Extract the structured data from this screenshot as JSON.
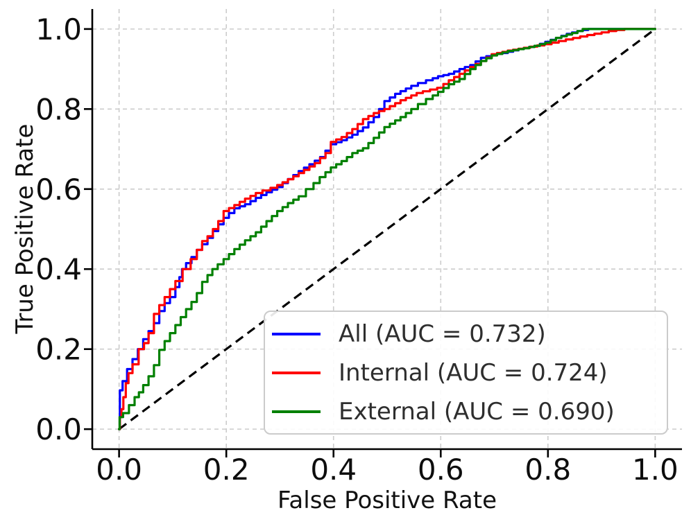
{
  "chart_data": {
    "type": "line",
    "subtype": "roc-curve",
    "title": "",
    "xlabel": "False Positive Rate",
    "ylabel": "True Positive Rate",
    "xlim": [
      -0.05,
      1.05
    ],
    "ylim": [
      -0.05,
      1.05
    ],
    "xticks": [
      "0.0",
      "0.2",
      "0.4",
      "0.6",
      "0.8",
      "1.0"
    ],
    "yticks": [
      "0.0",
      "0.2",
      "0.4",
      "0.6",
      "0.8",
      "1.0"
    ],
    "grid": {
      "on": true,
      "style": "dashed",
      "color": "#cccccc"
    },
    "legend_position": "lower right",
    "reference_line": {
      "name": "chance-diagonal",
      "style": "dashed",
      "color": "#000000",
      "from": [
        0,
        0
      ],
      "to": [
        1,
        1
      ]
    },
    "series": [
      {
        "name": "All",
        "auc": 0.732,
        "legend_label": "All (AUC = 0.732)",
        "color": "#0000ff",
        "points": [
          [
            0,
            0
          ],
          [
            0.003,
            0.097
          ],
          [
            0.01,
            0.12
          ],
          [
            0.02,
            0.15
          ],
          [
            0.03,
            0.175
          ],
          [
            0.04,
            0.2
          ],
          [
            0.05,
            0.225
          ],
          [
            0.06,
            0.245
          ],
          [
            0.07,
            0.265
          ],
          [
            0.08,
            0.295
          ],
          [
            0.09,
            0.315
          ],
          [
            0.1,
            0.33
          ],
          [
            0.11,
            0.355
          ],
          [
            0.115,
            0.38
          ],
          [
            0.12,
            0.4
          ],
          [
            0.13,
            0.415
          ],
          [
            0.14,
            0.43
          ],
          [
            0.15,
            0.448
          ],
          [
            0.16,
            0.462
          ],
          [
            0.17,
            0.478
          ],
          [
            0.18,
            0.495
          ],
          [
            0.19,
            0.512
          ],
          [
            0.2,
            0.528
          ],
          [
            0.21,
            0.54
          ],
          [
            0.22,
            0.552
          ],
          [
            0.24,
            0.562
          ],
          [
            0.26,
            0.578
          ],
          [
            0.28,
            0.592
          ],
          [
            0.3,
            0.605
          ],
          [
            0.32,
            0.625
          ],
          [
            0.34,
            0.645
          ],
          [
            0.36,
            0.662
          ],
          [
            0.38,
            0.68
          ],
          [
            0.4,
            0.712
          ],
          [
            0.42,
            0.722
          ],
          [
            0.44,
            0.736
          ],
          [
            0.46,
            0.754
          ],
          [
            0.48,
            0.78
          ],
          [
            0.5,
            0.82
          ],
          [
            0.52,
            0.838
          ],
          [
            0.55,
            0.858
          ],
          [
            0.58,
            0.872
          ],
          [
            0.6,
            0.882
          ],
          [
            0.62,
            0.888
          ],
          [
            0.64,
            0.9
          ],
          [
            0.66,
            0.91
          ],
          [
            0.68,
            0.928
          ],
          [
            0.7,
            0.936
          ],
          [
            0.72,
            0.94
          ],
          [
            0.75,
            0.95
          ],
          [
            0.78,
            0.958
          ],
          [
            0.8,
            0.968
          ],
          [
            0.82,
            0.978
          ],
          [
            0.84,
            0.988
          ],
          [
            0.86,
            0.995
          ],
          [
            0.88,
            1
          ],
          [
            1,
            1
          ]
        ]
      },
      {
        "name": "Internal",
        "auc": 0.724,
        "legend_label": "Internal (AUC = 0.724)",
        "color": "#ff0000",
        "points": [
          [
            0,
            0
          ],
          [
            0.003,
            0.03
          ],
          [
            0.006,
            0.05
          ],
          [
            0.01,
            0.08
          ],
          [
            0.015,
            0.115
          ],
          [
            0.02,
            0.14
          ],
          [
            0.03,
            0.162
          ],
          [
            0.043,
            0.2
          ],
          [
            0.05,
            0.215
          ],
          [
            0.06,
            0.24
          ],
          [
            0.07,
            0.288
          ],
          [
            0.08,
            0.31
          ],
          [
            0.09,
            0.33
          ],
          [
            0.1,
            0.35
          ],
          [
            0.11,
            0.37
          ],
          [
            0.127,
            0.4
          ],
          [
            0.14,
            0.425
          ],
          [
            0.15,
            0.448
          ],
          [
            0.16,
            0.47
          ],
          [
            0.17,
            0.482
          ],
          [
            0.18,
            0.5
          ],
          [
            0.19,
            0.52
          ],
          [
            0.2,
            0.545
          ],
          [
            0.22,
            0.56
          ],
          [
            0.24,
            0.576
          ],
          [
            0.26,
            0.59
          ],
          [
            0.29,
            0.603
          ],
          [
            0.31,
            0.617
          ],
          [
            0.33,
            0.632
          ],
          [
            0.35,
            0.648
          ],
          [
            0.37,
            0.665
          ],
          [
            0.39,
            0.69
          ],
          [
            0.4,
            0.718
          ],
          [
            0.42,
            0.73
          ],
          [
            0.44,
            0.75
          ],
          [
            0.46,
            0.775
          ],
          [
            0.48,
            0.79
          ],
          [
            0.5,
            0.8
          ],
          [
            0.53,
            0.822
          ],
          [
            0.56,
            0.84
          ],
          [
            0.6,
            0.853
          ],
          [
            0.62,
            0.872
          ],
          [
            0.64,
            0.888
          ],
          [
            0.66,
            0.905
          ],
          [
            0.68,
            0.92
          ],
          [
            0.7,
            0.937
          ],
          [
            0.73,
            0.946
          ],
          [
            0.76,
            0.953
          ],
          [
            0.8,
            0.962
          ],
          [
            0.84,
            0.974
          ],
          [
            0.88,
            0.985
          ],
          [
            0.92,
            0.995
          ],
          [
            0.95,
            1
          ],
          [
            1,
            1
          ]
        ]
      },
      {
        "name": "External",
        "auc": 0.69,
        "legend_label": "External (AUC = 0.690)",
        "color": "#008000",
        "points": [
          [
            0,
            0
          ],
          [
            0.002,
            0.03
          ],
          [
            0.013,
            0.04
          ],
          [
            0.024,
            0.06
          ],
          [
            0.034,
            0.08
          ],
          [
            0.04,
            0.092
          ],
          [
            0.05,
            0.11
          ],
          [
            0.06,
            0.132
          ],
          [
            0.07,
            0.16
          ],
          [
            0.08,
            0.198
          ],
          [
            0.09,
            0.22
          ],
          [
            0.1,
            0.24
          ],
          [
            0.11,
            0.26
          ],
          [
            0.12,
            0.28
          ],
          [
            0.13,
            0.3
          ],
          [
            0.14,
            0.318
          ],
          [
            0.15,
            0.34
          ],
          [
            0.16,
            0.368
          ],
          [
            0.17,
            0.385
          ],
          [
            0.178,
            0.4
          ],
          [
            0.19,
            0.412
          ],
          [
            0.2,
            0.425
          ],
          [
            0.22,
            0.45
          ],
          [
            0.24,
            0.472
          ],
          [
            0.26,
            0.492
          ],
          [
            0.28,
            0.52
          ],
          [
            0.3,
            0.545
          ],
          [
            0.32,
            0.565
          ],
          [
            0.34,
            0.582
          ],
          [
            0.357,
            0.6
          ],
          [
            0.38,
            0.63
          ],
          [
            0.4,
            0.654
          ],
          [
            0.42,
            0.67
          ],
          [
            0.44,
            0.69
          ],
          [
            0.46,
            0.702
          ],
          [
            0.48,
            0.728
          ],
          [
            0.5,
            0.755
          ],
          [
            0.53,
            0.78
          ],
          [
            0.55,
            0.8
          ],
          [
            0.58,
            0.825
          ],
          [
            0.6,
            0.843
          ],
          [
            0.62,
            0.862
          ],
          [
            0.64,
            0.875
          ],
          [
            0.66,
            0.9
          ],
          [
            0.68,
            0.92
          ],
          [
            0.7,
            0.934
          ],
          [
            0.73,
            0.945
          ],
          [
            0.76,
            0.952
          ],
          [
            0.78,
            0.958
          ],
          [
            0.8,
            0.966
          ],
          [
            0.82,
            0.978
          ],
          [
            0.85,
            0.99
          ],
          [
            0.87,
            1
          ],
          [
            1,
            1
          ]
        ]
      }
    ]
  }
}
